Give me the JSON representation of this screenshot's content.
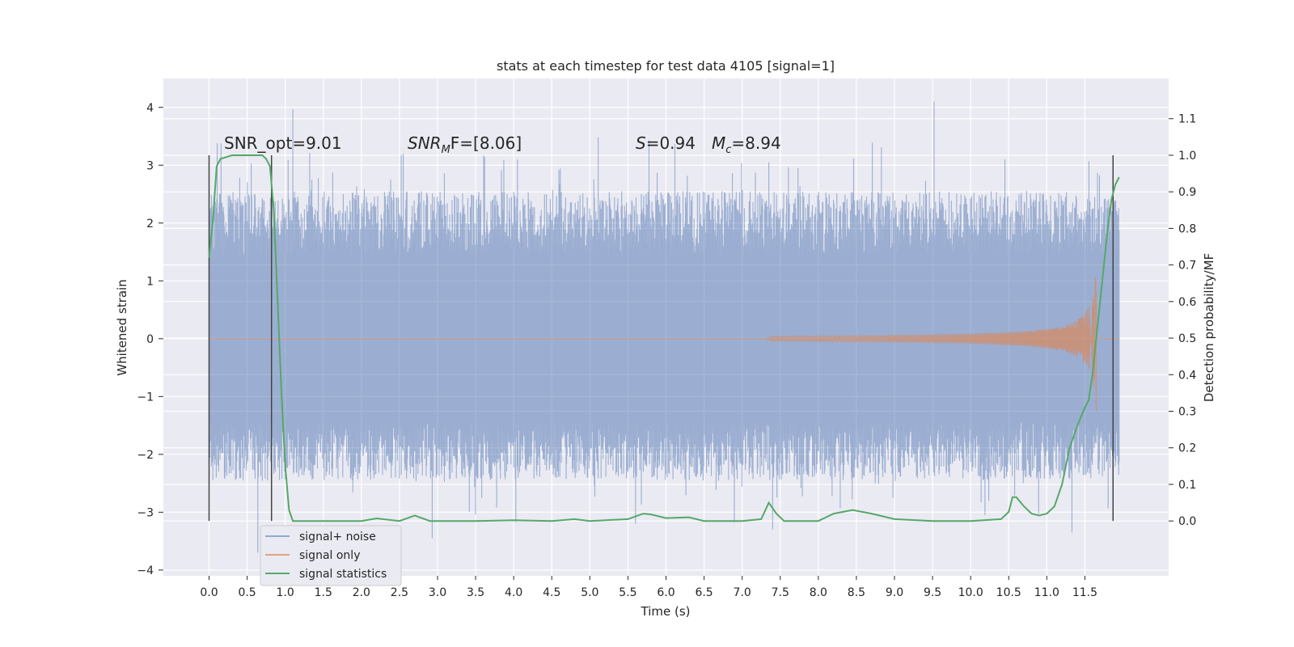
{
  "chart_data": {
    "type": "line",
    "title": "stats at each timestep for test data 4105 [signal=1]",
    "xlabel": "Time (s)",
    "ylabel": "Whitened strain",
    "y2label": "Detection probability/MF",
    "xlim": [
      -0.6,
      12.6
    ],
    "ylim": [
      -4.1,
      4.5
    ],
    "y2lim": [
      -0.15,
      1.21
    ],
    "x_ticks": [
      "0.0",
      "0.5",
      "1.0",
      "1.5",
      "2.0",
      "2.5",
      "3.0",
      "3.5",
      "4.0",
      "4.5",
      "5.0",
      "5.5",
      "6.0",
      "6.5",
      "7.0",
      "7.5",
      "8.0",
      "8.5",
      "9.0",
      "9.5",
      "10.0",
      "10.5",
      "11.0",
      "11.5"
    ],
    "y_ticks": [
      "4",
      "3",
      "2",
      "1",
      "0",
      "−1",
      "−2",
      "−3",
      "−4"
    ],
    "y2_ticks": [
      "1.1",
      "1.0",
      "0.9",
      "0.8",
      "0.7",
      "0.6",
      "0.5",
      "0.4",
      "0.3",
      "0.2",
      "0.1",
      "0.0"
    ],
    "grid": true,
    "legend_position": "lower-left",
    "annotations": {
      "snr_opt": "SNR_opt=9.01",
      "snr_mf_base": "SNR",
      "snr_mf_sub": "M",
      "snr_mf_rest": "F=[8.06]",
      "s_label": "S",
      "s_value": "=0.94",
      "mc_base": "M",
      "mc_sub": "c",
      "mc_value": "=8.94"
    },
    "vertical_markers": [
      0.0,
      0.82,
      11.87
    ],
    "series": [
      {
        "name": "signal+ noise",
        "color": "#4c72b0",
        "x_range": [
          0.0,
          11.95
        ],
        "envelope_y": [
          -1.45,
          1.45
        ],
        "peaks": [
          {
            "x": 1.1,
            "y": 3.97
          },
          {
            "x": 9.52,
            "y": 4.1
          },
          {
            "x": 0.64,
            "y": -3.7
          },
          {
            "x": 2.93,
            "y": -3.45
          },
          {
            "x": 11.33,
            "y": -3.35
          },
          {
            "x": 1.35,
            "y": 2.75
          },
          {
            "x": 2.55,
            "y": 3.2
          },
          {
            "x": 4.05,
            "y": 3.1
          },
          {
            "x": 7.35,
            "y": 3.05
          },
          {
            "x": 10.45,
            "y": 3.1
          },
          {
            "x": 7.4,
            "y": -3.3
          },
          {
            "x": 5.6,
            "y": -3.2
          }
        ]
      },
      {
        "name": "signal only",
        "color": "#dd8452",
        "x_range": [
          0.0,
          11.95
        ],
        "chirp_start": 7.3,
        "chirp_end": 11.65,
        "peak_amplitude": 1.25
      },
      {
        "name": "signal statistics",
        "color": "#55a868",
        "axis": "right",
        "x": [
          0.0,
          0.05,
          0.1,
          0.15,
          0.3,
          0.5,
          0.7,
          0.75,
          0.8,
          0.85,
          0.9,
          0.95,
          1.0,
          1.05,
          1.1,
          1.2,
          1.5,
          2.0,
          2.2,
          2.5,
          2.7,
          2.9,
          3.5,
          4.0,
          4.5,
          4.8,
          5.0,
          5.5,
          5.7,
          5.8,
          6.0,
          6.3,
          6.5,
          6.8,
          7.0,
          7.25,
          7.35,
          7.45,
          7.55,
          7.7,
          8.0,
          8.2,
          8.45,
          8.7,
          9.0,
          9.5,
          10.0,
          10.4,
          10.5,
          10.55,
          10.6,
          10.7,
          10.8,
          10.9,
          11.0,
          11.1,
          11.2,
          11.3,
          11.4,
          11.5,
          11.55,
          11.6,
          11.65,
          11.7,
          11.75,
          11.8,
          11.85,
          11.9,
          11.95
        ],
        "y": [
          0.72,
          0.82,
          0.97,
          0.99,
          1.0,
          1.0,
          1.0,
          0.99,
          0.97,
          0.85,
          0.6,
          0.35,
          0.15,
          0.03,
          0.0,
          0.0,
          0.0,
          0.0,
          0.007,
          0.0,
          0.015,
          0.0,
          0.0,
          0.002,
          0.0,
          0.005,
          0.0,
          0.005,
          0.02,
          0.018,
          0.008,
          0.01,
          0.0,
          0.0,
          0.0,
          0.005,
          0.05,
          0.02,
          0.0,
          0.0,
          0.0,
          0.02,
          0.03,
          0.02,
          0.005,
          0.0,
          0.0,
          0.005,
          0.025,
          0.065,
          0.065,
          0.04,
          0.02,
          0.015,
          0.02,
          0.04,
          0.1,
          0.2,
          0.26,
          0.31,
          0.33,
          0.4,
          0.5,
          0.6,
          0.7,
          0.8,
          0.88,
          0.92,
          0.94
        ]
      }
    ]
  }
}
